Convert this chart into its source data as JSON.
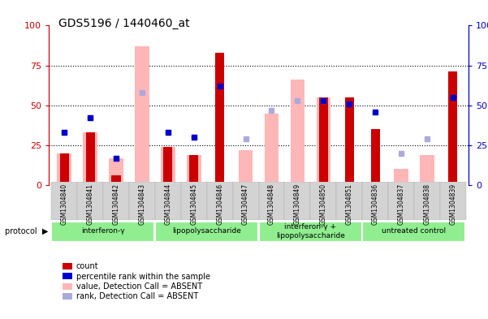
{
  "title": "GDS5196 / 1440460_at",
  "samples": [
    "GSM1304840",
    "GSM1304841",
    "GSM1304842",
    "GSM1304843",
    "GSM1304844",
    "GSM1304845",
    "GSM1304846",
    "GSM1304847",
    "GSM1304848",
    "GSM1304849",
    "GSM1304850",
    "GSM1304851",
    "GSM1304836",
    "GSM1304837",
    "GSM1304838",
    "GSM1304839"
  ],
  "red_bars": [
    20,
    33,
    6,
    0,
    24,
    19,
    83,
    0,
    0,
    0,
    55,
    55,
    35,
    0,
    0,
    71
  ],
  "pink_bars": [
    20,
    33,
    17,
    87,
    24,
    19,
    0,
    22,
    45,
    66,
    55,
    0,
    0,
    10,
    19,
    0
  ],
  "blue_squares": [
    33,
    42,
    17,
    58,
    33,
    30,
    62,
    29,
    47,
    53,
    53,
    51,
    46,
    20,
    29,
    55
  ],
  "light_blue_squares": [
    33,
    42,
    17,
    58,
    33,
    30,
    0,
    29,
    47,
    53,
    53,
    0,
    0,
    20,
    29,
    0
  ],
  "group_labels": [
    "interferon-γ",
    "lipopolysaccharide",
    "interferon-γ +\nlipopolysaccharide",
    "untreated control"
  ],
  "group_starts": [
    0,
    4,
    8,
    12
  ],
  "group_ends": [
    4,
    8,
    12,
    16
  ],
  "ylim": [
    0,
    100
  ],
  "yticks": [
    0,
    25,
    50,
    75,
    100
  ],
  "red_color": "#cc0000",
  "pink_color": "#ffb6b6",
  "blue_color": "#0000cc",
  "light_blue_color": "#aaaadd",
  "group_color": "#90ee90",
  "bg_color": "#ffffff",
  "plot_bg_color": "#ffffff",
  "tick_bg_color": "#d3d3d3"
}
